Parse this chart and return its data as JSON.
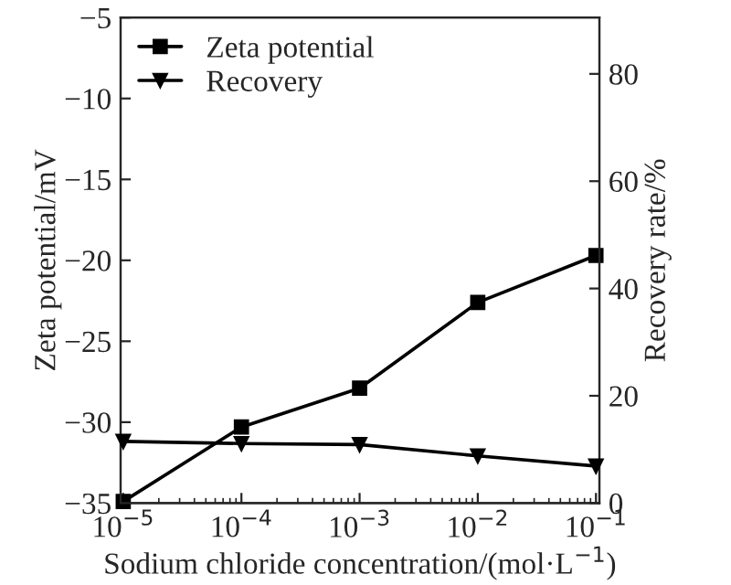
{
  "chart_data": {
    "type": "line",
    "xlabel": "Sodium chloride concentration/(mol·L$^{−1}$)",
    "ylabel": "Zeta potential/mV",
    "y2label": "Recovery rate/%",
    "x": [
      1e-05,
      0.0001,
      0.001,
      0.01,
      0.1
    ],
    "log": "x",
    "series": [
      {
        "name": "Zeta potential",
        "color": "#000000",
        "marker": "square",
        "values": [
          -34.9,
          -30.3,
          -27.9,
          -22.6,
          -19.7
        ]
      },
      {
        "name": "Recovery",
        "color": "#000000",
        "marker": "triangle",
        "axis": "y2",
        "values": [
          11.5,
          11.1,
          10.9,
          8.8,
          6.9
        ]
      }
    ],
    "xlim": [
      9.5e-06,
      0.107
    ],
    "xticks": [
      {
        "value": 1e-05,
        "label": "10$^{−5}$"
      },
      {
        "value": 0.0001,
        "label": "10$^{−4}$"
      },
      {
        "value": 0.001,
        "label": "10$^{−3}$"
      },
      {
        "value": 0.01,
        "label": "10$^{−2}$"
      },
      {
        "value": 0.1,
        "label": "10$^{−1}$"
      }
    ],
    "ylim": [
      -35,
      -5
    ],
    "yticks": [
      {
        "value": -35,
        "label": "−35"
      },
      {
        "value": -30,
        "label": "−30"
      },
      {
        "value": -25,
        "label": "−25"
      },
      {
        "value": -20,
        "label": "−20"
      },
      {
        "value": -15,
        "label": "−15"
      },
      {
        "value": -10,
        "label": "−10"
      },
      {
        "value": -5,
        "label": "−5"
      }
    ],
    "y2lim": [
      0,
      90.5
    ],
    "y2ticks": [
      0,
      20,
      40,
      60,
      80
    ],
    "legend": "top left",
    "grid": false,
    "line_style": "solid"
  }
}
